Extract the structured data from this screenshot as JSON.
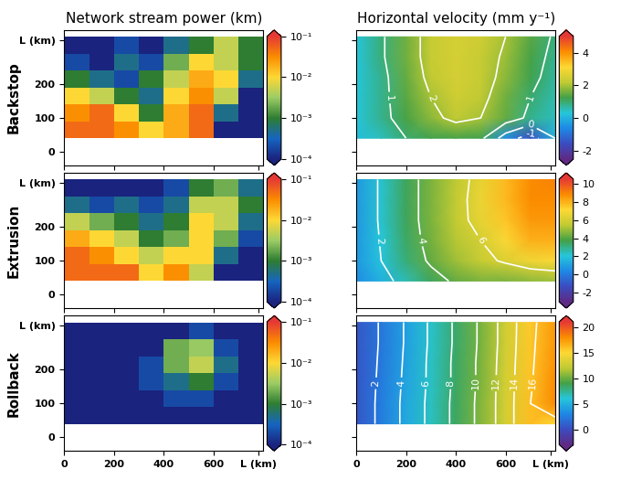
{
  "chart_data": [
    {
      "type": "stream_power",
      "title": "Network stream power (km)",
      "row_label": "Backstop",
      "xlim": [
        0,
        800
      ],
      "ylim": [
        -40,
        360
      ],
      "xticks": [
        0,
        200,
        400,
        600,
        {
          "value": 780,
          "label": "L (km)"
        }
      ],
      "yticks": [
        0,
        100,
        200,
        {
          "value": 330,
          "label": "L (km)"
        }
      ],
      "tick_labels": "y",
      "x_edges": [
        0,
        100,
        200,
        300,
        400,
        500,
        600,
        700,
        800
      ],
      "y_edges": [
        40,
        90,
        140,
        190,
        240,
        290,
        340
      ],
      "cells": [
        [
          0.05,
          0.05,
          0.03,
          0.01,
          0.02,
          0.05,
          0.0001,
          0.0001
        ],
        [
          0.03,
          0.05,
          0.01,
          0.001,
          0.02,
          0.05,
          0.0005,
          0.0001
        ],
        [
          0.01,
          0.005,
          0.001,
          0.0005,
          0.01,
          0.03,
          0.005,
          0.0001
        ],
        [
          0.001,
          0.0005,
          0.0002,
          0.001,
          0.005,
          0.02,
          0.01,
          0.0005
        ],
        [
          0.0002,
          0.0001,
          0.0005,
          0.0002,
          0.002,
          0.01,
          0.005,
          0.001
        ],
        [
          0.0001,
          0.0001,
          0.0002,
          0.0001,
          0.0005,
          0.001,
          0.005,
          0.001
        ]
      ],
      "colorbar": {
        "log": true,
        "lim": [
          0.0001,
          0.1
        ],
        "ticks": [
          {
            "value": 0.1,
            "label": "10⁻¹"
          },
          {
            "value": 0.01,
            "label": "10⁻²"
          },
          {
            "value": 0.001,
            "label": "10⁻³"
          },
          {
            "value": 0.0001,
            "label": "10⁻⁴"
          }
        ]
      }
    },
    {
      "type": "velocity",
      "title": "Horizontal velocity (mm y⁻¹)",
      "xlim": [
        0,
        800
      ],
      "ylim": [
        -40,
        360
      ],
      "xticks": [
        0,
        200,
        400,
        600,
        {
          "value": 780,
          "label": "L (km)"
        }
      ],
      "yticks": [
        0,
        100,
        200,
        {
          "value": 330,
          "label": "L (km)"
        }
      ],
      "tick_labels": false,
      "x": [
        0,
        100,
        200,
        300,
        400,
        500,
        600,
        700,
        800
      ],
      "y": [
        40,
        100,
        160,
        220,
        280,
        340
      ],
      "cells": [
        [
          0.2,
          0.5,
          1.0,
          1.2,
          1.3,
          1.2,
          -0.5,
          -1.5,
          0
        ],
        [
          0.3,
          0.8,
          1.3,
          1.8,
          2.2,
          2.0,
          1.5,
          0.8,
          0.5
        ],
        [
          0.3,
          0.8,
          1.4,
          2.0,
          2.4,
          2.2,
          1.6,
          1.0,
          0.6
        ],
        [
          0.3,
          0.8,
          1.5,
          2.2,
          2.5,
          2.3,
          1.8,
          1.2,
          0.7
        ],
        [
          0.3,
          0.9,
          1.6,
          2.3,
          2.5,
          2.3,
          1.9,
          1.3,
          0.8
        ],
        [
          0.3,
          0.9,
          1.6,
          2.3,
          2.5,
          2.4,
          2.0,
          1.4,
          0.9
        ]
      ],
      "contour_levels": [
        -1,
        0,
        1,
        2
      ],
      "colorbar": {
        "log": false,
        "lim": [
          -2.5,
          5
        ],
        "ticks": [
          -2,
          0,
          2,
          4
        ]
      }
    },
    {
      "type": "stream_power",
      "row_label": "Extrusion",
      "xlim": [
        0,
        800
      ],
      "ylim": [
        -40,
        360
      ],
      "xticks": [
        0,
        200,
        400,
        600,
        {
          "value": 780,
          "label": "L (km)"
        }
      ],
      "yticks": [
        0,
        100,
        200,
        {
          "value": 330,
          "label": "L (km)"
        }
      ],
      "tick_labels": "y",
      "x_edges": [
        0,
        100,
        200,
        300,
        400,
        500,
        600,
        700,
        800
      ],
      "y_edges": [
        40,
        90,
        140,
        190,
        240,
        290,
        340
      ],
      "cells": [
        [
          0.05,
          0.05,
          0.05,
          0.01,
          0.03,
          0.005,
          0.0001,
          0.0001
        ],
        [
          0.05,
          0.03,
          0.01,
          0.005,
          0.01,
          0.01,
          0.0005,
          0.0001
        ],
        [
          0.02,
          0.01,
          0.005,
          0.001,
          0.002,
          0.01,
          0.002,
          0.0002
        ],
        [
          0.005,
          0.002,
          0.001,
          0.0005,
          0.001,
          0.01,
          0.005,
          0.0005
        ],
        [
          0.0005,
          0.0002,
          0.0005,
          0.0002,
          0.0005,
          0.005,
          0.005,
          0.001
        ],
        [
          0.0001,
          0.0001,
          0.0001,
          0.0001,
          0.0002,
          0.001,
          0.002,
          0.0005
        ]
      ],
      "colorbar": {
        "log": true,
        "lim": [
          0.0001,
          0.1
        ],
        "ticks": [
          {
            "value": 0.1,
            "label": "10⁻¹"
          },
          {
            "value": 0.01,
            "label": "10⁻²"
          },
          {
            "value": 0.001,
            "label": "10⁻³"
          },
          {
            "value": 0.0001,
            "label": "10⁻⁴"
          }
        ]
      }
    },
    {
      "type": "velocity",
      "xlim": [
        0,
        800
      ],
      "ylim": [
        -40,
        360
      ],
      "xticks": [
        0,
        200,
        400,
        600,
        {
          "value": 780,
          "label": "L (km)"
        }
      ],
      "yticks": [
        0,
        100,
        200,
        {
          "value": 330,
          "label": "L (km)"
        }
      ],
      "tick_labels": false,
      "x": [
        0,
        100,
        200,
        300,
        400,
        500,
        600,
        700,
        800
      ],
      "y": [
        40,
        100,
        160,
        220,
        280,
        340
      ],
      "cells": [
        [
          0.5,
          1.5,
          2.5,
          3.5,
          4.2,
          4.5,
          4.5,
          4.8,
          5
        ],
        [
          0.8,
          2,
          3.2,
          4.2,
          5,
          5.6,
          6.2,
          6.8,
          7
        ],
        [
          0.8,
          2.1,
          3.4,
          4.4,
          5.3,
          6,
          7,
          8,
          8
        ],
        [
          0.8,
          2.2,
          3.5,
          4.5,
          5.5,
          6.5,
          7.5,
          8.5,
          8.5
        ],
        [
          0.8,
          2.2,
          3.5,
          4.5,
          5.5,
          6.6,
          7.8,
          8.8,
          8.8
        ],
        [
          0.8,
          2.2,
          3.5,
          4.5,
          5.4,
          6.5,
          7.8,
          8.8,
          9
        ]
      ],
      "contour_levels": [
        2,
        4,
        6
      ],
      "colorbar": {
        "log": false,
        "lim": [
          -3,
          10.5
        ],
        "ticks": [
          -2,
          0,
          2,
          4,
          6,
          8,
          10
        ]
      }
    },
    {
      "type": "stream_power",
      "row_label": "Rollback",
      "xlim": [
        0,
        800
      ],
      "ylim": [
        -40,
        360
      ],
      "xticks": [
        0,
        200,
        400,
        600,
        {
          "value": 780,
          "label": "L (km)"
        }
      ],
      "yticks": [
        0,
        100,
        200,
        {
          "value": 330,
          "label": "L (km)"
        }
      ],
      "tick_labels": true,
      "x_edges": [
        0,
        100,
        200,
        300,
        400,
        500,
        600,
        700,
        800
      ],
      "y_edges": [
        40,
        90,
        140,
        190,
        240,
        290,
        340
      ],
      "cells": [
        [
          0.0001,
          0.0001,
          0.0001,
          0.0001,
          0.0001,
          0.0001,
          0.0001,
          0.0001
        ],
        [
          0.0001,
          0.0001,
          0.0001,
          0.0001,
          0.0002,
          0.0002,
          0.0001,
          0.0001
        ],
        [
          0.0001,
          0.0001,
          0.0001,
          0.0002,
          0.0005,
          0.001,
          0.0002,
          0.0001
        ],
        [
          0.0001,
          0.0001,
          0.0001,
          0.0002,
          0.002,
          0.005,
          0.0005,
          0.0001
        ],
        [
          0.0001,
          0.0001,
          0.0001,
          0.0001,
          0.002,
          0.003,
          0.0002,
          0.0001
        ],
        [
          0.0001,
          0.0001,
          0.0001,
          0.0001,
          0.0001,
          0.0002,
          0.0001,
          0.0001
        ]
      ],
      "colorbar": {
        "log": true,
        "lim": [
          0.0001,
          0.1
        ],
        "ticks": [
          {
            "value": 0.1,
            "label": "10⁻¹"
          },
          {
            "value": 0.01,
            "label": "10⁻²"
          },
          {
            "value": 0.001,
            "label": "10⁻³"
          },
          {
            "value": 0.0001,
            "label": "10⁻⁴"
          }
        ]
      }
    },
    {
      "type": "velocity",
      "xlim": [
        0,
        800
      ],
      "ylim": [
        -40,
        360
      ],
      "xticks": [
        0,
        200,
        400,
        600,
        {
          "value": 780,
          "label": "L (km)"
        }
      ],
      "yticks": [
        0,
        100,
        200,
        {
          "value": 330,
          "label": "L (km)"
        }
      ],
      "tick_labels": "x",
      "x": [
        0,
        100,
        200,
        300,
        400,
        500,
        600,
        700,
        800
      ],
      "y": [
        40,
        100,
        160,
        220,
        280,
        340
      ],
      "cells": [
        [
          0.5,
          2.5,
          4.5,
          6.5,
          8.5,
          10.5,
          13,
          16,
          15
        ],
        [
          0.5,
          2.5,
          4.5,
          6.5,
          8.5,
          10.5,
          13,
          16,
          18
        ],
        [
          0.5,
          2.4,
          4.4,
          6.4,
          8.4,
          10.4,
          13,
          15.8,
          18
        ],
        [
          0.5,
          2.3,
          4.3,
          6.4,
          8.4,
          10.4,
          12.9,
          15.7,
          17.8
        ],
        [
          0.5,
          2.2,
          4.2,
          6.3,
          8.3,
          10.3,
          12.8,
          15.6,
          17.6
        ],
        [
          0.5,
          2.2,
          4.2,
          6.3,
          8.3,
          10.3,
          12.8,
          15.5,
          17.5
        ]
      ],
      "contour_levels": [
        2,
        4,
        6,
        8,
        10,
        12,
        14,
        16
      ],
      "colorbar": {
        "log": false,
        "lim": [
          -3,
          21
        ],
        "ticks": [
          0,
          5,
          10,
          15,
          20
        ]
      }
    }
  ]
}
